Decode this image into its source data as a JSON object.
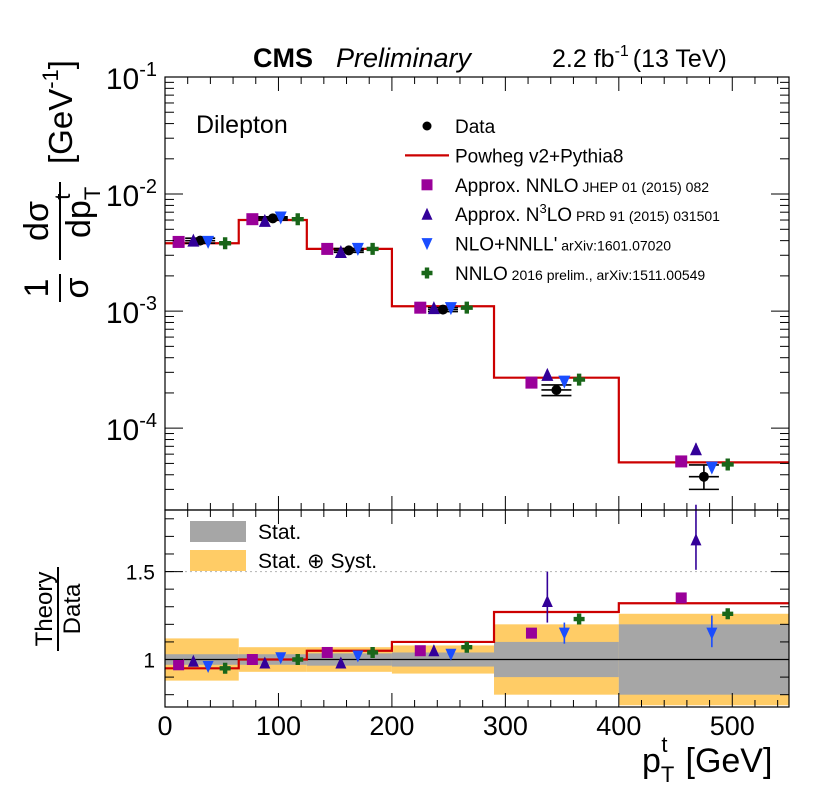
{
  "header": {
    "cms": "CMS",
    "preliminary": "Preliminary",
    "lumi_value": "2.2 fb",
    "lumi_exponent": "-1",
    "lumi_energy": "(13 TeV)",
    "channel": "Dilepton"
  },
  "colors": {
    "data": "#000000",
    "powheg": "#cc0000",
    "approx_nnlo": "#990099",
    "approx_n3lo": "#330099",
    "nlo_nnll": "#1a4dff",
    "nnlo": "#196619",
    "stat_band": "#a6a6a6",
    "syst_band": "#ffcc66"
  },
  "chart_data": [
    {
      "type": "scatter",
      "panel": "main",
      "xlabel": "p_T^t [GeV]",
      "ylabel": "1/σ dσ/dp_T^t [GeV^-1]",
      "yscale": "log",
      "xlim": [
        0,
        550
      ],
      "ylim": [
        2e-05,
        0.1
      ],
      "bin_edges": [
        0,
        65,
        125,
        200,
        290,
        400,
        550
      ],
      "y_tick_labels": [
        {
          "base": "10",
          "exp": "-1",
          "value": 0.1
        },
        {
          "base": "10",
          "exp": "-2",
          "value": 0.01
        },
        {
          "base": "10",
          "exp": "-3",
          "value": 0.001
        },
        {
          "base": "10",
          "exp": "-4",
          "value": 0.0001
        }
      ],
      "legend": {
        "position": "top-right",
        "entries": [
          {
            "id": "data",
            "label": "Data",
            "note": "",
            "sup": ""
          },
          {
            "id": "powheg",
            "label": "Powheg v2+Pythia8",
            "note": "",
            "sup": ""
          },
          {
            "id": "approx_nnlo",
            "label": "Approx. NNLO",
            "note": "JHEP 01 (2015) 082",
            "sup": ""
          },
          {
            "id": "approx_n3lo",
            "label": "Approx. N",
            "sup": "3",
            "label_after": "LO",
            "note": "PRD 91 (2015) 031501"
          },
          {
            "id": "nlo_nnll",
            "label": "NLO+NNLL'",
            "note": "arXiv:1601.07020",
            "sup": ""
          },
          {
            "id": "nnlo",
            "label": "NNLO",
            "note": "2016 prelim., arXiv:1511.00549",
            "sup": ""
          }
        ]
      },
      "series": [
        {
          "name": "Data",
          "x": [
            31,
            95,
            162,
            245,
            345,
            475
          ],
          "y": [
            0.004,
            0.0062,
            0.0033,
            0.00103,
            0.000212,
            3.85e-05
          ],
          "err_lo": [
            0.0002,
            0.0002,
            0.00012,
            4e-05,
            2.2e-05,
            8.5e-06
          ],
          "err_hi": [
            0.0002,
            0.0002,
            0.00012,
            4e-05,
            2.2e-05,
            1e-05
          ]
        },
        {
          "name": "Powheg v2+Pythia8",
          "values": [
            0.0038,
            0.006,
            0.0034,
            0.0011,
            0.00027,
            5.1e-05
          ]
        },
        {
          "name": "Approx. NNLO",
          "x": [
            12,
            77,
            143,
            225,
            323,
            455
          ],
          "y": [
            0.0039,
            0.0061,
            0.0034,
            0.00107,
            0.000245,
            5.2e-05
          ]
        },
        {
          "name": "Approx. N3LO",
          "x": [
            25,
            88,
            155,
            237,
            337,
            468
          ],
          "y": [
            0.004,
            0.0059,
            0.0032,
            0.00106,
            0.000285,
            6.6e-05
          ],
          "err_lo": [
            0,
            0,
            0,
            0,
            2e-05,
            6e-06
          ],
          "err_hi": [
            0,
            0,
            0,
            0,
            2e-05,
            8e-06
          ]
        },
        {
          "name": "NLO+NNLL'",
          "x": [
            38,
            102,
            170,
            252,
            352,
            482
          ],
          "y": [
            0.0039,
            0.0063,
            0.0034,
            0.00106,
            0.00025,
            4.6e-05
          ]
        },
        {
          "name": "NNLO",
          "x": [
            53,
            117,
            183,
            266,
            365,
            496
          ],
          "y": [
            0.0038,
            0.0061,
            0.0034,
            0.00107,
            0.00026,
            4.9e-05
          ]
        }
      ]
    },
    {
      "type": "scatter",
      "panel": "ratio",
      "xlabel": "p_T^t [GeV]",
      "ylabel": "Theory / Data",
      "ylabel_top": "Theory",
      "ylabel_bottom": "Data",
      "xlim": [
        0,
        550
      ],
      "ylim": [
        0.73,
        1.85
      ],
      "x_ticks": [
        0,
        100,
        200,
        300,
        400,
        500
      ],
      "y_ticks": [
        1,
        1.5
      ],
      "y_tick_labels": [
        "1",
        "1.5"
      ],
      "reference_line": 1.5,
      "bin_edges": [
        0,
        65,
        125,
        200,
        290,
        400,
        550
      ],
      "legend": {
        "position": "top-left",
        "entries": [
          {
            "id": "stat_band",
            "label": "Stat."
          },
          {
            "id": "syst_band",
            "label": "Stat. ⊕ Syst."
          }
        ]
      },
      "stat_band": [
        0.03,
        0.03,
        0.035,
        0.04,
        0.1,
        0.2
      ],
      "syst_band": [
        0.12,
        0.07,
        0.07,
        0.08,
        0.2,
        0.26
      ],
      "series": [
        {
          "name": "Powheg v2+Pythia8",
          "values": [
            0.95,
            1.0,
            1.05,
            1.1,
            1.27,
            1.32
          ]
        },
        {
          "name": "Approx. NNLO",
          "x": [
            12,
            77,
            143,
            225,
            323,
            455
          ],
          "y": [
            0.97,
            1.0,
            1.04,
            1.05,
            1.15,
            1.35
          ]
        },
        {
          "name": "Approx. N3LO",
          "x": [
            25,
            88,
            155,
            237,
            337,
            468
          ],
          "y": [
            0.99,
            0.98,
            0.98,
            1.05,
            1.33,
            1.68
          ],
          "err_lo": [
            0,
            0,
            0,
            0.03,
            0.12,
            0.17
          ],
          "err_hi": [
            0,
            0,
            0,
            0.03,
            0.17,
            0.2
          ]
        },
        {
          "name": "NLO+NNLL'",
          "x": [
            38,
            102,
            170,
            252,
            352,
            482
          ],
          "y": [
            0.96,
            1.01,
            1.02,
            1.03,
            1.15,
            1.15
          ],
          "err_lo": [
            0,
            0,
            0,
            0,
            0.06,
            0.08
          ],
          "err_hi": [
            0,
            0,
            0,
            0,
            0.06,
            0.1
          ]
        },
        {
          "name": "NNLO",
          "x": [
            53,
            117,
            183,
            266,
            365,
            496
          ],
          "y": [
            0.95,
            1.0,
            1.04,
            1.07,
            1.23,
            1.26
          ]
        }
      ]
    }
  ]
}
